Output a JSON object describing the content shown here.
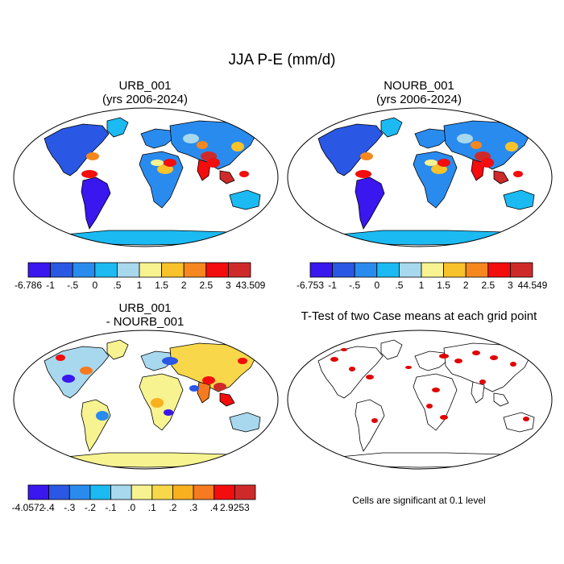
{
  "main_title": "JJA P-E (mm/d)",
  "panels": [
    {
      "id": "urb",
      "title_line1": "URB_001",
      "title_line2": "(yrs 2006-2024)"
    },
    {
      "id": "nourb",
      "title_line1": "NOURB_001",
      "title_line2": "(yrs 2006-2024)"
    },
    {
      "id": "diff",
      "title_line1": "URB_001",
      "title_line2": "- NOURB_001"
    },
    {
      "id": "ttest",
      "title_line1": "T-Test of two Case means at each grid point",
      "title_line2": ""
    }
  ],
  "colorbars": {
    "urb": {
      "labels": [
        "-6.786",
        "-1",
        "-.5",
        "0",
        ".5",
        "1",
        "1.5",
        "2",
        "2.5",
        "3",
        "43.509"
      ],
      "colors": [
        "#3a16ef",
        "#2a57e3",
        "#2a8bee",
        "#1bbaf2",
        "#a8d8ee",
        "#f7f390",
        "#f8c22a",
        "#f6871f",
        "#f30d0d",
        "#cf2a2a"
      ]
    },
    "nourb": {
      "labels": [
        "-6.753",
        "-1",
        "-.5",
        "0",
        ".5",
        "1",
        "1.5",
        "2",
        "2.5",
        "3",
        "44.549"
      ],
      "colors": [
        "#3a16ef",
        "#2a57e3",
        "#2a8bee",
        "#1bbaf2",
        "#a8d8ee",
        "#f7f390",
        "#f8c22a",
        "#f6871f",
        "#f30d0d",
        "#cf2a2a"
      ]
    },
    "diff": {
      "labels": [
        "-4.0572",
        "-.4",
        "-.3",
        "-.2",
        "-.1",
        ".0",
        ".1",
        ".2",
        ".3",
        ".4",
        "2.9253"
      ],
      "colors": [
        "#3a16ef",
        "#2a57e3",
        "#2a8bee",
        "#1bbaf2",
        "#a8d8ee",
        "#f7f390",
        "#f8d84a",
        "#f8b01f",
        "#f67a1f",
        "#f30d0d",
        "#cf2a2a"
      ]
    }
  },
  "ttest_note": "Cells are significant at 0.1 level",
  "colors": {
    "land_default": "#2a8bee",
    "ocean": "#ffffff",
    "coast": "#000000",
    "significant": "#e00000"
  }
}
